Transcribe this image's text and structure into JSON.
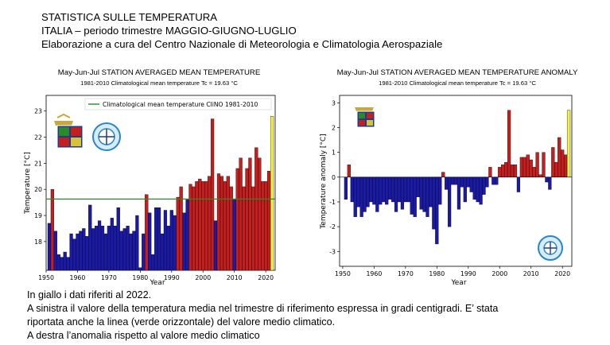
{
  "header": {
    "line1": "STATISTICA SULLE TEMPERATURA",
    "line2": "ITALIA – periodo  trimestre MAGGIO-GIUGNO-LUGLIO",
    "line3": "Elaborazione a cura del Centro Nazionale di Meteorologia e Climatologia Aerospaziale"
  },
  "footer": {
    "line1": "In giallo i dati riferiti al 2022.",
    "line2": "A sinistra il valore della temperatura media nel trimestre di riferimento espressa in gradi centigradi. E’ stata",
    "line3": "riportata anche la linea (verde orizzontale) del valore medio climatico.",
    "line4": "A destra l’anomalia rispetto al valore medio climatico"
  },
  "colors": {
    "below": "#1a1aa6",
    "above": "#c41e1e",
    "current": "#f2f24a",
    "climatology": "#2a8a2a"
  },
  "chart_data": [
    {
      "type": "bar",
      "title": "May-Jun-Jul STATION AVERAGED MEAN TEMPERATURE",
      "subtitle": "1981-2010 Climatological mean temperature Tc = 19.63 °C",
      "xlabel": "Year",
      "ylabel": "Temperature [°C]",
      "xlim": [
        1950,
        2023
      ],
      "ylim": [
        16.9,
        23.6
      ],
      "xticks": [
        1950,
        1960,
        1970,
        1980,
        1990,
        2000,
        2010,
        2020
      ],
      "yticks": [
        18,
        19,
        20,
        21,
        22,
        23
      ],
      "reference_line": {
        "value": 19.63,
        "label": "Climatological mean temperature CliNO 1981-2010"
      },
      "legend": "top",
      "years": [
        1951,
        1952,
        1953,
        1954,
        1955,
        1956,
        1957,
        1958,
        1959,
        1960,
        1961,
        1962,
        1963,
        1964,
        1965,
        1966,
        1967,
        1968,
        1969,
        1970,
        1971,
        1972,
        1973,
        1974,
        1975,
        1976,
        1977,
        1978,
        1979,
        1980,
        1981,
        1982,
        1983,
        1984,
        1985,
        1986,
        1987,
        1988,
        1989,
        1990,
        1991,
        1992,
        1993,
        1994,
        1995,
        1996,
        1997,
        1998,
        1999,
        2000,
        2001,
        2002,
        2003,
        2004,
        2005,
        2006,
        2007,
        2008,
        2009,
        2010,
        2011,
        2012,
        2013,
        2014,
        2015,
        2016,
        2017,
        2018,
        2019,
        2020,
        2021,
        2022
      ],
      "values": [
        18.7,
        20.0,
        18.4,
        17.5,
        17.4,
        17.6,
        17.4,
        18.3,
        18.1,
        18.3,
        18.4,
        18.5,
        18.2,
        19.4,
        18.5,
        18.6,
        18.8,
        18.6,
        18.3,
        18.6,
        18.9,
        18.6,
        19.3,
        18.4,
        18.5,
        18.6,
        18.3,
        18.4,
        19.0,
        17.0,
        18.3,
        19.8,
        19.1,
        17.5,
        19.3,
        19.3,
        18.3,
        19.2,
        18.6,
        19.2,
        19.0,
        19.7,
        20.1,
        19.1,
        19.6,
        20.2,
        20.1,
        20.3,
        20.4,
        20.3,
        20.3,
        20.5,
        22.7,
        18.8,
        20.6,
        20.5,
        20.3,
        20.5,
        20.1,
        19.6,
        20.8,
        21.2,
        20.1,
        20.8,
        21.2,
        20.1,
        21.6,
        21.2,
        20.3,
        20.3,
        20.7,
        22.8
      ]
    },
    {
      "type": "bar",
      "title": "May-Jun-Jul STATION AVERAGED MEAN TEMPERATURE ANOMALY",
      "subtitle": "1981-2010 Climatological mean temperature Tc = 19.63 °C",
      "xlabel": "Year",
      "ylabel": "Temperature anomaly [°C]",
      "xlim": [
        1949,
        2023
      ],
      "ylim": [
        -3.6,
        3.3
      ],
      "xticks": [
        1950,
        1960,
        1970,
        1980,
        1990,
        2000,
        2010,
        2020
      ],
      "yticks": [
        -3,
        -2,
        -1,
        0,
        1,
        2,
        3
      ],
      "years": [
        1951,
        1952,
        1953,
        1954,
        1955,
        1956,
        1957,
        1958,
        1959,
        1960,
        1961,
        1962,
        1963,
        1964,
        1965,
        1966,
        1967,
        1968,
        1969,
        1970,
        1971,
        1972,
        1973,
        1974,
        1975,
        1976,
        1977,
        1978,
        1979,
        1980,
        1981,
        1982,
        1983,
        1984,
        1985,
        1986,
        1987,
        1988,
        1989,
        1990,
        1991,
        1992,
        1993,
        1994,
        1995,
        1996,
        1997,
        1998,
        1999,
        2000,
        2001,
        2002,
        2003,
        2004,
        2005,
        2006,
        2007,
        2008,
        2009,
        2010,
        2011,
        2012,
        2013,
        2014,
        2015,
        2016,
        2017,
        2018,
        2019,
        2020,
        2021,
        2022
      ],
      "values": [
        -0.9,
        0.5,
        -1.0,
        -1.6,
        -1.2,
        -1.6,
        -1.4,
        -1.2,
        -1.0,
        -1.1,
        -1.4,
        -1.1,
        -1.0,
        -1.1,
        -0.9,
        -1.0,
        -1.4,
        -1.0,
        -1.3,
        -1.0,
        -1.0,
        -1.5,
        -1.6,
        -0.8,
        -1.3,
        -1.4,
        -1.6,
        -1.2,
        -2.1,
        -2.7,
        -1.1,
        0.2,
        -0.5,
        -2.0,
        -0.3,
        -0.3,
        -1.3,
        -0.4,
        -1.0,
        -0.4,
        -0.6,
        -0.9,
        -1.0,
        -1.1,
        -0.7,
        -0.4,
        0.4,
        -0.3,
        -0.3,
        0.4,
        0.5,
        0.6,
        2.7,
        0.5,
        0.5,
        -0.6,
        0.8,
        0.8,
        0.9,
        0.7,
        0.4,
        1.0,
        0.1,
        1.0,
        -0.2,
        -0.5,
        1.2,
        0.6,
        1.6,
        1.1,
        0.9,
        2.7
      ]
    }
  ]
}
